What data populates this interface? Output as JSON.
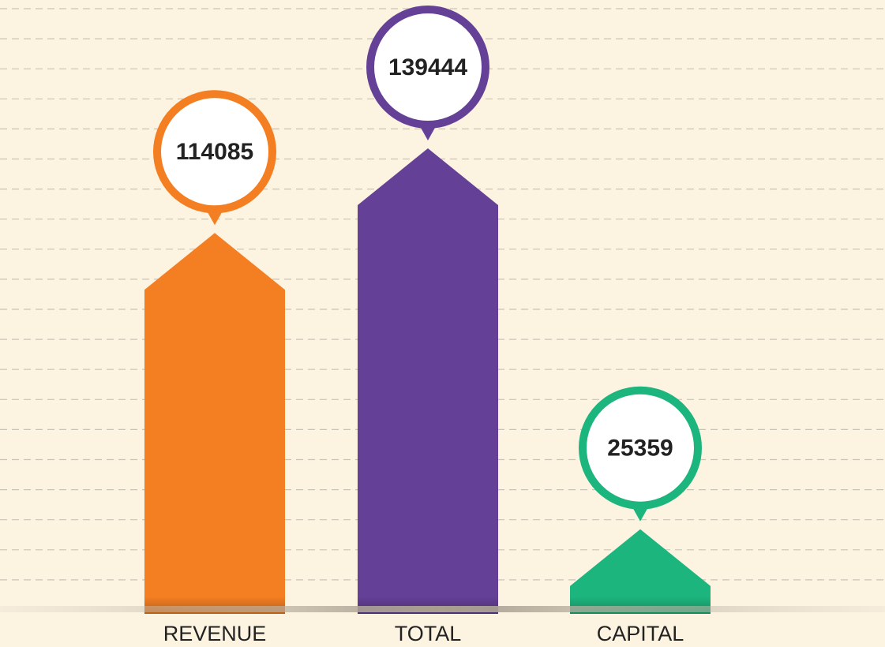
{
  "chart_data": {
    "type": "bar",
    "categories": [
      "REVENUE",
      "TOTAL",
      "CAPITAL"
    ],
    "values": [
      114085,
      139444,
      25359
    ],
    "colors": [
      "#f47f22",
      "#654097",
      "#1db57e"
    ]
  }
}
